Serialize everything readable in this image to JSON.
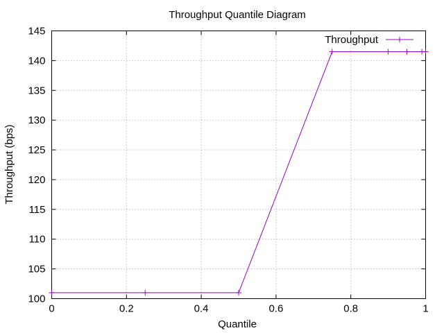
{
  "chart_data": {
    "type": "line",
    "title": "Throughput Quantile Diagram",
    "xlabel": "Quantile",
    "ylabel": "Throughput (bps)",
    "xlim": [
      0,
      1
    ],
    "ylim": [
      100,
      145
    ],
    "xticks": [
      0,
      0.2,
      0.4,
      0.6,
      0.8,
      1
    ],
    "xtick_labels": [
      "0",
      "0.2",
      "0.4",
      "0.6",
      "0.8",
      "1"
    ],
    "yticks": [
      100,
      105,
      110,
      115,
      120,
      125,
      130,
      135,
      140,
      145
    ],
    "ytick_labels": [
      "100",
      "105",
      "110",
      "115",
      "120",
      "125",
      "130",
      "135",
      "140",
      "145"
    ],
    "grid": true,
    "legend_position": "top-right",
    "series": [
      {
        "name": "Throughput",
        "color": "#9400d3",
        "marker": "plus",
        "x": [
          0,
          0.25,
          0.5,
          0.75,
          0.9,
          0.95,
          0.99,
          1
        ],
        "y": [
          101,
          101,
          101,
          141.5,
          141.5,
          141.5,
          141.5,
          141.5
        ]
      }
    ]
  }
}
